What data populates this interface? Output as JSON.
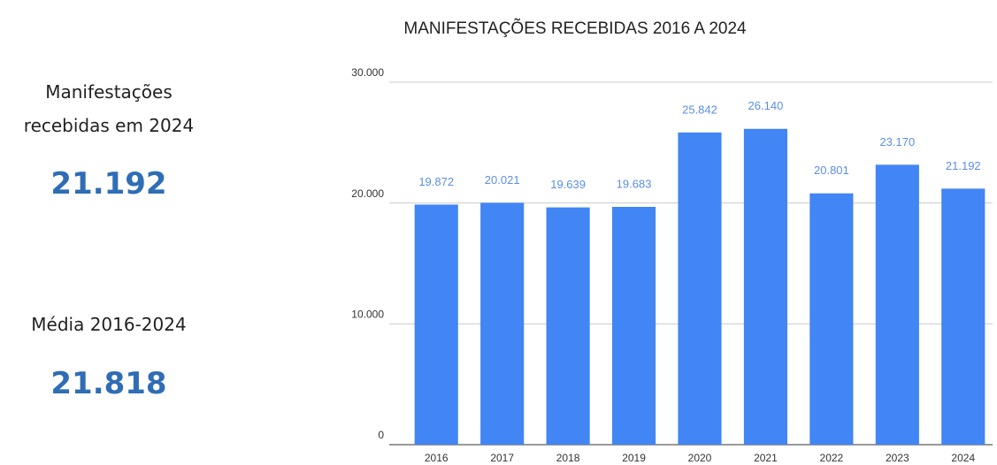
{
  "kpis": [
    {
      "label": "Manifestações recebidas em 2024",
      "value": "21.192"
    },
    {
      "label": "Média 2016-2024",
      "value": "21.818"
    }
  ],
  "chart_data": {
    "type": "bar",
    "title": "MANIFESTAÇÕES RECEBIDAS 2016 A 2024",
    "categories": [
      "2016",
      "2017",
      "2018",
      "2019",
      "2020",
      "2021",
      "2022",
      "2023",
      "2024"
    ],
    "values": [
      19872,
      20021,
      19639,
      19683,
      25842,
      26140,
      20801,
      23170,
      21192
    ],
    "value_labels": [
      "19.872",
      "20.021",
      "19.639",
      "19.683",
      "25.842",
      "26.140",
      "20.801",
      "23.170",
      "21.192"
    ],
    "color": "#4285f4",
    "ylim": [
      0,
      30000
    ],
    "yticks": [
      0,
      {
        "value": 10000,
        "label": "10.000"
      },
      {
        "value": 20000,
        "label": "20.000"
      },
      {
        "value": 30000,
        "label": "30.000"
      }
    ],
    "grid": true
  }
}
